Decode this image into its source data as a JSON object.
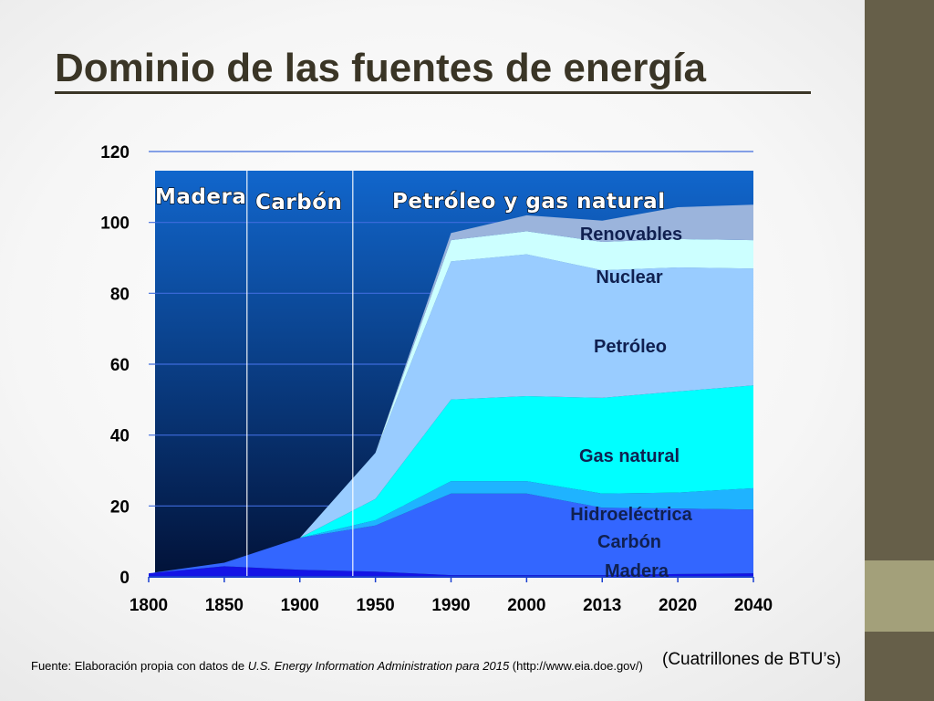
{
  "slide": {
    "title": "Dominio de las fuentes de energía",
    "footnote_prefix": "Fuente: Elaboración propia con datos de ",
    "footnote_source": "U.S. Energy Information Administration para 2015",
    "footnote_suffix": " (http://www.eia.doe.gov/)",
    "units": "(Cuatrillones de BTU’s)"
  },
  "colors": {
    "madera": "#1414e6",
    "carbon": "#3366ff",
    "hidro": "#1fb3ff",
    "gas": "#00ffff",
    "petroleo": "#99ccff",
    "nuclear": "#ccffff",
    "renovables": "#9bb4dc",
    "panel_top": "#1166cc",
    "panel_bottom": "#021238",
    "grid": "#3f6bdc"
  },
  "chart_data": {
    "type": "area",
    "stacked": true,
    "x": [
      "1800",
      "1850",
      "1900",
      "1950",
      "1990",
      "2000",
      "2013",
      "2020",
      "2040"
    ],
    "ylim": [
      0,
      120
    ],
    "yticks": [
      "0",
      "20",
      "40",
      "60",
      "80",
      "100",
      "120"
    ],
    "grid": true,
    "series": [
      {
        "name": "Madera",
        "key": "madera",
        "values": [
          1,
          3,
          2,
          1.5,
          0.5,
          0.5,
          0.5,
          0.8,
          1
        ]
      },
      {
        "name": "Carbón",
        "key": "carbon",
        "values": [
          0,
          1,
          9,
          13,
          23,
          23,
          19,
          18.5,
          18
        ]
      },
      {
        "name": "Hidroeléctrica",
        "key": "hidro",
        "values": [
          0,
          0,
          0,
          1.5,
          3.5,
          3.5,
          4,
          4.5,
          6
        ]
      },
      {
        "name": "Gas natural",
        "key": "gas",
        "values": [
          0,
          0,
          0,
          6,
          23,
          24,
          27,
          28.5,
          29
        ]
      },
      {
        "name": "Petróleo",
        "key": "petroleo",
        "values": [
          0,
          0,
          0,
          13,
          39,
          40,
          36,
          35,
          33
        ]
      },
      {
        "name": "Nuclear",
        "key": "nuclear",
        "values": [
          0,
          0,
          0,
          0,
          6,
          6.5,
          8,
          8,
          8
        ]
      },
      {
        "name": "Renovables",
        "key": "renovables",
        "values": [
          0,
          0,
          0,
          0,
          2,
          4.5,
          6,
          9,
          10
        ]
      }
    ],
    "eras": [
      {
        "label": "Madera",
        "from": "1800",
        "to": "1865"
      },
      {
        "label": "Carbón",
        "from": "1865",
        "to": "1935"
      },
      {
        "label": "Petróleo y gas natural",
        "from": "1935",
        "to": "2040"
      }
    ],
    "annotations": [
      "Renovables",
      "Nuclear",
      "Petróleo",
      "Gas natural",
      "Hidroeléctrica",
      "Carbón",
      "Madera"
    ]
  }
}
